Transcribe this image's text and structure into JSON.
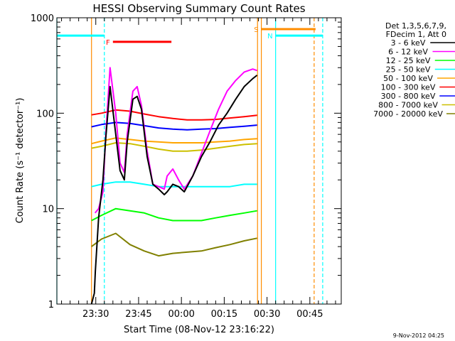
{
  "chart_data": {
    "type": "line",
    "title": "HESSI Observing Summary Count Rates",
    "xlabel": "Start Time (08-Nov-12 23:16:22)",
    "ylabel": "Count Rate (s⁻¹ detector⁻¹)",
    "y_scale": "log",
    "ylim": [
      1,
      1000
    ],
    "xlim": [
      "23:16:22",
      "00:56:00"
    ],
    "y_ticks": [
      "1",
      "10",
      "100",
      "1000"
    ],
    "x_ticks": [
      {
        "t": "23:30",
        "label": "23:30"
      },
      {
        "t": "23:45",
        "label": "23:45"
      },
      {
        "t": "00:00",
        "label": "00:00"
      },
      {
        "t": "00:15",
        "label": "00:15"
      },
      {
        "t": "00:30",
        "label": "00:30"
      },
      {
        "t": "00:45",
        "label": "00:45"
      }
    ],
    "legend": {
      "placement": "right",
      "header": [
        "Det 1,3,5,6,7,9,",
        "FDecim 1, Att 0"
      ]
    },
    "series": [
      {
        "name": "3 - 6 keV",
        "color": "#000000",
        "x": [
          "23:28:30",
          "23:29:30",
          "23:29:50",
          "23:31:00",
          "23:32:30",
          "23:33:30",
          "23:35:00",
          "23:37:00",
          "23:38:30",
          "23:40:00",
          "23:41:00",
          "23:43:00",
          "23:44:30",
          "23:46:00",
          "23:48:00",
          "23:50:00",
          "23:52:00",
          "23:54:00",
          "23:55:00",
          "23:57:00",
          "23:59:00",
          "00:01:00",
          "00:04:00",
          "00:07:00",
          "00:10:00",
          "00:13:00",
          "00:16:00",
          "00:19:00",
          "00:22:00",
          "00:25:00",
          "00:26:30"
        ],
        "values": [
          1,
          1.3,
          2.2,
          8,
          20,
          55,
          190,
          60,
          25,
          20,
          50,
          140,
          150,
          110,
          35,
          18,
          16,
          14,
          15,
          18,
          17,
          15,
          22,
          35,
          50,
          75,
          100,
          140,
          190,
          230,
          250
        ]
      },
      {
        "name": "6 - 12 keV",
        "color": "#ff00ff",
        "x": [
          "23:29:45",
          "23:31:00",
          "23:32:30",
          "23:33:30",
          "23:35:00",
          "23:37:00",
          "23:38:30",
          "23:40:00",
          "23:41:00",
          "23:43:00",
          "23:44:30",
          "23:46:00",
          "23:48:00",
          "23:50:00",
          "23:52:00",
          "23:54:00",
          "23:55:00",
          "23:57:00",
          "23:59:00",
          "00:01:00",
          "00:04:00",
          "00:07:00",
          "00:10:00",
          "00:13:00",
          "00:16:00",
          "00:19:00",
          "00:22:00",
          "00:25:00",
          "00:26:30"
        ],
        "values": [
          9,
          10,
          15,
          60,
          300,
          100,
          30,
          24,
          60,
          170,
          190,
          120,
          40,
          18,
          17,
          16,
          22,
          26,
          20,
          16,
          22,
          38,
          65,
          110,
          170,
          220,
          270,
          290,
          280
        ]
      },
      {
        "name": "12 - 25 keV",
        "color": "#00ff00",
        "x": [
          "23:28:30",
          "23:32:00",
          "23:37:00",
          "23:42:00",
          "23:47:00",
          "23:52:00",
          "23:57:00",
          "00:02:00",
          "00:07:00",
          "00:12:00",
          "00:17:00",
          "00:22:00",
          "00:26:30"
        ],
        "values": [
          7.5,
          8.5,
          10,
          9.5,
          9,
          8,
          7.5,
          7.5,
          7.5,
          8,
          8.5,
          9,
          9.5
        ]
      },
      {
        "name": "25 - 50 keV",
        "color": "#00ffff",
        "x": [
          "23:28:30",
          "23:32:00",
          "23:37:00",
          "23:42:00",
          "23:47:00",
          "23:52:00",
          "23:57:00",
          "00:02:00",
          "00:07:00",
          "00:12:00",
          "00:17:00",
          "00:22:00",
          "00:26:30"
        ],
        "values": [
          17,
          18,
          19,
          19,
          18,
          17,
          17,
          17,
          17,
          17,
          17,
          18,
          18
        ]
      },
      {
        "name": "50 - 100 keV",
        "color": "#ffa500",
        "x": [
          "23:28:30",
          "23:32:00",
          "23:37:00",
          "23:42:00",
          "23:47:00",
          "23:52:00",
          "23:57:00",
          "00:02:00",
          "00:07:00",
          "00:12:00",
          "00:17:00",
          "00:22:00",
          "00:26:30"
        ],
        "values": [
          48,
          51,
          55,
          53,
          51,
          50,
          49,
          49,
          49,
          50,
          51,
          53,
          54
        ]
      },
      {
        "name": "100 - 300 keV",
        "color": "#ff0000",
        "x": [
          "23:28:30",
          "23:32:00",
          "23:37:00",
          "23:42:00",
          "23:47:00",
          "23:52:00",
          "23:57:00",
          "00:02:00",
          "00:07:00",
          "00:12:00",
          "00:17:00",
          "00:22:00",
          "00:26:30"
        ],
        "values": [
          96,
          100,
          108,
          105,
          98,
          92,
          88,
          85,
          85,
          86,
          89,
          92,
          95
        ]
      },
      {
        "name": "300 - 800 keV",
        "color": "#0000ff",
        "x": [
          "23:28:30",
          "23:32:00",
          "23:37:00",
          "23:42:00",
          "23:47:00",
          "23:52:00",
          "23:57:00",
          "00:02:00",
          "00:07:00",
          "00:12:00",
          "00:17:00",
          "00:22:00",
          "00:26:30"
        ],
        "values": [
          72,
          76,
          80,
          78,
          74,
          70,
          68,
          67,
          68,
          69,
          71,
          73,
          75
        ]
      },
      {
        "name": "800 - 7000 keV",
        "color": "#ccc000",
        "x": [
          "23:28:30",
          "23:32:00",
          "23:37:00",
          "23:42:00",
          "23:47:00",
          "23:52:00",
          "23:57:00",
          "00:02:00",
          "00:07:00",
          "00:12:00",
          "00:17:00",
          "00:22:00",
          "00:26:30"
        ],
        "values": [
          43,
          45,
          49,
          48,
          45,
          42,
          40,
          40,
          41,
          43,
          45,
          47,
          48
        ]
      },
      {
        "name": "7000 - 20000 keV",
        "color": "#808000",
        "x": [
          "23:28:30",
          "23:32:00",
          "23:37:00",
          "23:42:00",
          "23:47:00",
          "23:52:00",
          "23:57:00",
          "00:02:00",
          "00:07:00",
          "00:12:00",
          "00:17:00",
          "00:22:00",
          "00:26:30"
        ],
        "values": [
          4,
          4.8,
          5.5,
          4.2,
          3.6,
          3.2,
          3.4,
          3.5,
          3.6,
          3.9,
          4.2,
          4.6,
          4.9
        ]
      }
    ],
    "state_bars": [
      {
        "label": "",
        "color": "#00ffff",
        "start": "23:16:22",
        "end": "23:33:00",
        "level": 650
      },
      {
        "label": "N",
        "color": "#00ffff",
        "start": "00:33:00",
        "end": "00:49:30",
        "level": 650
      },
      {
        "label": "F",
        "color": "#ff0000",
        "start": "23:36:00",
        "end": "23:56:30",
        "level": 560
      },
      {
        "label": "S",
        "color": "#ff8c00",
        "start": "00:28:00",
        "end": "00:47:00",
        "level": 760
      }
    ],
    "vertical_lines": [
      {
        "t": "23:16:22",
        "color": "#00ffff",
        "style": "solid"
      },
      {
        "t": "23:33:00",
        "color": "#00ffff",
        "style": "dashed"
      },
      {
        "t": "23:28:30",
        "color": "#ff8c00",
        "style": "solid"
      },
      {
        "t": "00:26:40",
        "color": "#ff8c00",
        "style": "solid"
      },
      {
        "t": "00:28:00",
        "color": "#ff8c00",
        "style": "solid"
      },
      {
        "t": "00:33:00",
        "color": "#00ffff",
        "style": "solid"
      },
      {
        "t": "00:46:30",
        "color": "#ff8c00",
        "style": "dashed"
      },
      {
        "t": "00:49:30",
        "color": "#00ffff",
        "style": "dashed"
      }
    ],
    "grid": false
  },
  "footer_date": "9-Nov-2012 04:25"
}
